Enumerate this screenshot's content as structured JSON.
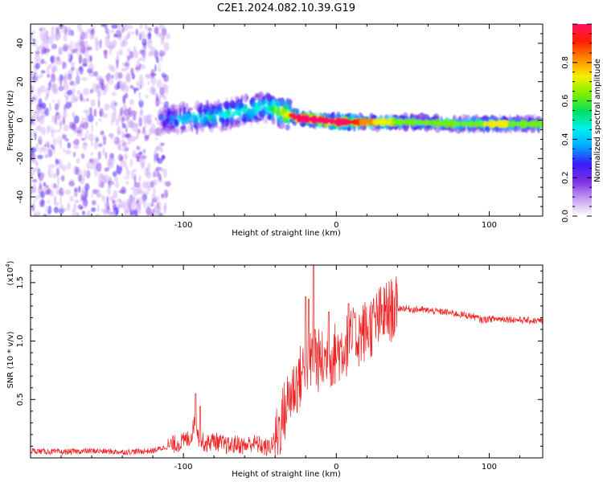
{
  "title": "C2E1.2024.082.10.39.G19",
  "chart_data": [
    {
      "type": "heatmap",
      "xlabel": "Height of straight line (km)",
      "ylabel": "Frequency (Hz)",
      "xlim": [
        -200,
        135
      ],
      "ylim": [
        -50,
        50
      ],
      "x_ticks": [
        -100,
        0,
        100
      ],
      "y_ticks": [
        -40,
        -20,
        0,
        20,
        40
      ],
      "colorbar": {
        "label": "Normalized spectral amplitude",
        "range": [
          0.0,
          1.0
        ],
        "ticks": [
          0.0,
          0.2,
          0.4,
          0.6,
          0.8
        ],
        "colors": [
          "#ffffff",
          "#c59cf2",
          "#7b2fe3",
          "#3a1cff",
          "#00a8ff",
          "#00f0f0",
          "#00e060",
          "#7cf000",
          "#f8f000",
          "#ff8800",
          "#ff2000",
          "#ff1060"
        ]
      },
      "ridge": [
        {
          "x": -115,
          "y": 0,
          "amp": 0.3
        },
        {
          "x": -100,
          "y": 1,
          "amp": 0.4
        },
        {
          "x": -80,
          "y": 2,
          "amp": 0.45
        },
        {
          "x": -60,
          "y": 5,
          "amp": 0.5
        },
        {
          "x": -45,
          "y": 7,
          "amp": 0.5
        },
        {
          "x": -35,
          "y": 4,
          "amp": 0.75
        },
        {
          "x": -25,
          "y": 1,
          "amp": 0.9
        },
        {
          "x": -10,
          "y": 0,
          "amp": 1.0
        },
        {
          "x": 0,
          "y": -1,
          "amp": 0.95
        },
        {
          "x": 20,
          "y": -1,
          "amp": 0.7
        },
        {
          "x": 50,
          "y": -1,
          "amp": 0.5
        },
        {
          "x": 80,
          "y": -2,
          "amp": 0.5
        },
        {
          "x": 100,
          "y": -2,
          "amp": 0.6
        },
        {
          "x": 135,
          "y": -2,
          "amp": 0.55
        }
      ]
    },
    {
      "type": "line",
      "xlabel": "Height of straight line (km)",
      "ylabel": "SNR (10 * v/v)",
      "y_multiplier": "(x10^4)",
      "y_multiplier_base": "(x10",
      "y_multiplier_exp": "4",
      "y_multiplier_close": ")",
      "xlim": [
        -200,
        135
      ],
      "ylim": [
        0,
        1.65
      ],
      "x_ticks": [
        -100,
        0,
        100
      ],
      "y_ticks": [
        0.5,
        1.0,
        1.5
      ],
      "y_tick_labels": [
        "0.5",
        "1.0",
        "1.5"
      ],
      "series": [
        {
          "color": "#ee2222",
          "points": [
            [
              -200,
              0.06
            ],
            [
              -180,
              0.05
            ],
            [
              -160,
              0.06
            ],
            [
              -140,
              0.05
            ],
            [
              -120,
              0.06
            ],
            [
              -110,
              0.1
            ],
            [
              -100,
              0.14
            ],
            [
              -95,
              0.18
            ],
            [
              -92,
              0.35
            ],
            [
              -90,
              0.16
            ],
            [
              -85,
              0.12
            ],
            [
              -80,
              0.15
            ],
            [
              -75,
              0.12
            ],
            [
              -70,
              0.1
            ],
            [
              -65,
              0.12
            ],
            [
              -60,
              0.1
            ],
            [
              -55,
              0.13
            ],
            [
              -50,
              0.11
            ],
            [
              -45,
              0.08
            ],
            [
              -40,
              0.15
            ],
            [
              -35,
              0.35
            ],
            [
              -30,
              0.55
            ],
            [
              -25,
              0.65
            ],
            [
              -20,
              0.8
            ],
            [
              -15,
              0.85
            ],
            [
              -10,
              0.82
            ],
            [
              -5,
              0.85
            ],
            [
              0,
              0.9
            ],
            [
              5,
              0.95
            ],
            [
              10,
              1.0
            ],
            [
              15,
              1.05
            ],
            [
              20,
              1.1
            ],
            [
              25,
              1.15
            ],
            [
              30,
              1.22
            ],
            [
              35,
              1.26
            ],
            [
              40,
              1.28
            ],
            [
              45,
              1.28
            ],
            [
              50,
              1.27
            ],
            [
              55,
              1.27
            ],
            [
              60,
              1.26
            ],
            [
              70,
              1.25
            ],
            [
              80,
              1.23
            ],
            [
              90,
              1.21
            ],
            [
              95,
              1.18
            ],
            [
              100,
              1.19
            ],
            [
              110,
              1.19
            ],
            [
              120,
              1.18
            ],
            [
              135,
              1.17
            ]
          ],
          "spikes": [
            [
              -92,
              0.55
            ],
            [
              -89,
              0.44
            ],
            [
              -20,
              1.38
            ],
            [
              -18,
              1.36
            ],
            [
              -15,
              1.65
            ],
            [
              -14,
              1.1
            ],
            [
              -5,
              1.25
            ],
            [
              8,
              1.32
            ],
            [
              12,
              1.2
            ],
            [
              30,
              1.31
            ]
          ]
        }
      ]
    }
  ]
}
